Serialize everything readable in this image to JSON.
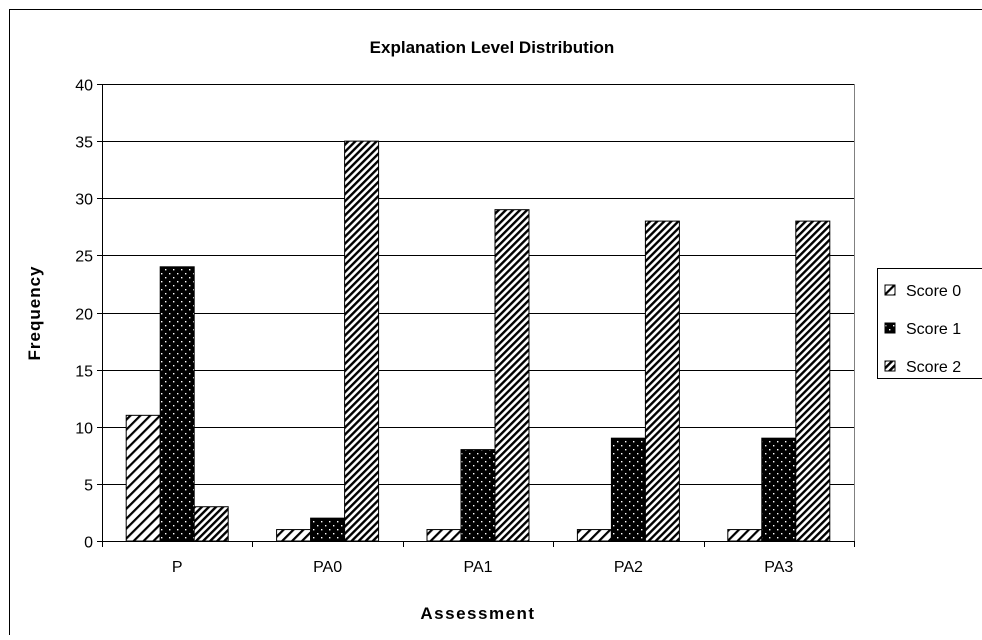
{
  "chart_data": {
    "type": "bar",
    "title": "Explanation Level Distribution",
    "xlabel": "Assessment",
    "ylabel": "Frequency",
    "categories": [
      "P",
      "PA0",
      "PA1",
      "PA2",
      "PA3"
    ],
    "ylim": [
      0,
      40
    ],
    "yticks": [
      0,
      5,
      10,
      15,
      20,
      25,
      30,
      35,
      40
    ],
    "grid": true,
    "legend_position": "right",
    "series": [
      {
        "name": "Score 0",
        "values": [
          11,
          1,
          1,
          1,
          1
        ],
        "pattern": "hatch-wide"
      },
      {
        "name": "Score 1",
        "values": [
          24,
          2,
          8,
          9,
          9
        ],
        "pattern": "dots-on-black"
      },
      {
        "name": "Score 2",
        "values": [
          3,
          35,
          29,
          28,
          28
        ],
        "pattern": "hatch-dense"
      }
    ]
  }
}
